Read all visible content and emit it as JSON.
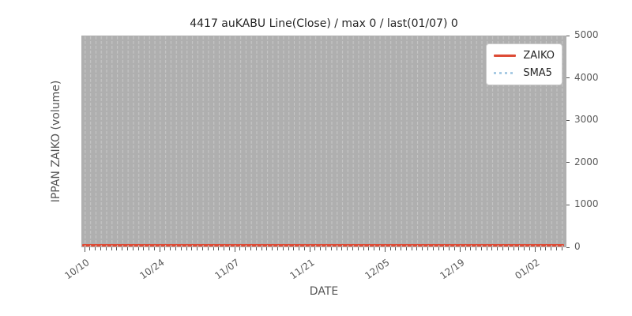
{
  "chart_data": {
    "type": "line",
    "title": "4417 auKABU Line(Close) / max 0 / last(01/07) 0",
    "xlabel": "DATE",
    "ylabel": "IPPAN ZAIKO (volume)",
    "x_ticks": [
      "10/10",
      "10/24",
      "11/07",
      "11/21",
      "12/05",
      "12/19",
      "01/02"
    ],
    "y_ticks": [
      0,
      1000,
      2000,
      3000,
      4000,
      5000
    ],
    "ylim": [
      0,
      5000
    ],
    "x_range_note": "daily dates from 10/10 to 01/07, one vertical dashed gridline per date",
    "series": [
      {
        "name": "ZAIKO",
        "color": "#dd4b35",
        "line_style": "solid",
        "value_all_dates": 0,
        "max": 0,
        "last": 0,
        "last_date": "01/07"
      },
      {
        "name": "SMA5",
        "color": "#a8cbe4",
        "line_style": "dotted",
        "value_all_dates": 0
      }
    ],
    "legend_position": "upper right",
    "grid": {
      "axis": "x",
      "style": "dashed",
      "color": "#c6c6c6"
    },
    "plot_background": "#afafaf",
    "figure_background": "#ffffff"
  }
}
